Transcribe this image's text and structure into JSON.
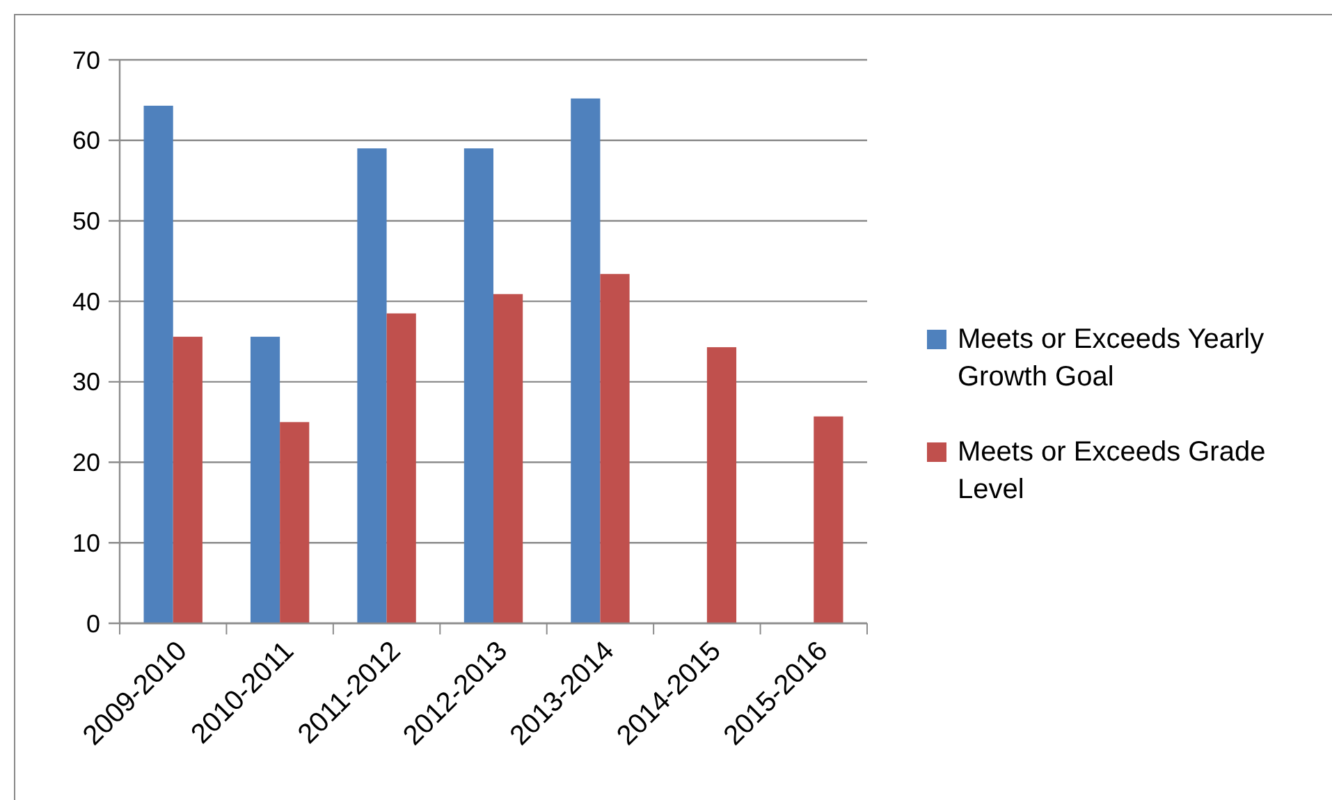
{
  "chart_data": {
    "type": "bar",
    "categories": [
      "2009-2010",
      "2010-2011",
      "2011-2012",
      "2012-2013",
      "2013-2014",
      "2014-2015",
      "2015-2016"
    ],
    "series": [
      {
        "name": "Meets or Exceeds Yearly Growth Goal",
        "color": "#4f81bd",
        "values": [
          64.3,
          35.6,
          59,
          59,
          65.2,
          null,
          null
        ]
      },
      {
        "name": "Meets or Exceeds Grade Level",
        "color": "#c0504d",
        "values": [
          35.6,
          25,
          38.5,
          40.9,
          43.4,
          34.3,
          25.7
        ]
      }
    ],
    "ylim": [
      0,
      70
    ],
    "yticks": [
      0,
      10,
      20,
      30,
      40,
      50,
      60,
      70
    ],
    "grid": "y",
    "legend": "right"
  }
}
